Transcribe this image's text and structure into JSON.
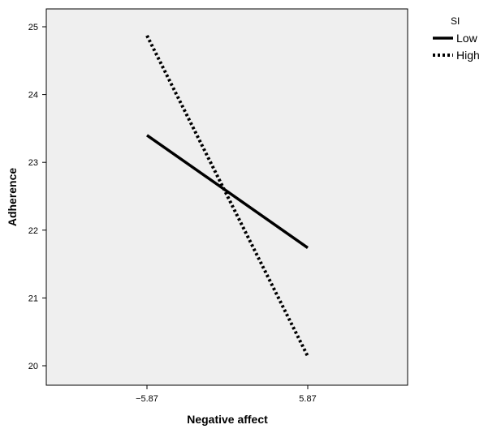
{
  "chart_data": {
    "type": "line",
    "xlabel": "Negative affect",
    "ylabel": "Adherence",
    "categories": [
      "−5.87",
      "5.87"
    ],
    "x": [
      -5.87,
      5.87
    ],
    "ylim": [
      19.8,
      25.3
    ],
    "yticks": [
      20,
      21,
      22,
      23,
      24,
      25
    ],
    "grid": false,
    "plot_background": "#efefef",
    "legend": {
      "title": "SI",
      "position": "top-right"
    },
    "series": [
      {
        "name": "Low",
        "values": [
          23.4,
          21.74
        ],
        "style": "solid",
        "color": "#000000"
      },
      {
        "name": "High",
        "values": [
          24.87,
          20.14
        ],
        "style": "dotted",
        "color": "#000000"
      }
    ]
  }
}
